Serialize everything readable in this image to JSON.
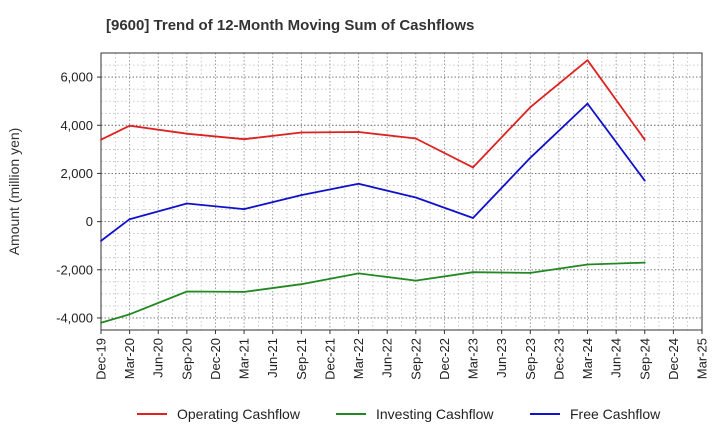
{
  "chart_data": {
    "type": "line",
    "title": "[9600]  Trend of 12-Month Moving Sum of Cashflows",
    "ylabel": "Amount (million yen)",
    "xlabel": "",
    "ylim": [
      -4500,
      7000
    ],
    "yticks": [
      -4000,
      -2000,
      0,
      2000,
      4000,
      6000
    ],
    "ytick_labels": [
      "-4,000",
      "-2,000",
      "0",
      "2,000",
      "4,000",
      "6,000"
    ],
    "categories": [
      "Dec-19",
      "Mar-20",
      "Jun-20",
      "Sep-20",
      "Dec-20",
      "Mar-21",
      "Jun-21",
      "Sep-21",
      "Dec-21",
      "Mar-22",
      "Jun-22",
      "Sep-22",
      "Dec-22",
      "Mar-23",
      "Jun-23",
      "Sep-23",
      "Dec-23",
      "Mar-24",
      "Jun-24",
      "Sep-24",
      "Dec-24",
      "Mar-25"
    ],
    "grid": true,
    "legend_position": "bottom",
    "series": [
      {
        "name": "Operating Cashflow",
        "color": "#dd2222",
        "values": [
          3400,
          3980,
          null,
          3650,
          null,
          3420,
          null,
          3700,
          null,
          3720,
          null,
          3450,
          null,
          2250,
          null,
          4750,
          null,
          6700,
          null,
          3400,
          null,
          null
        ]
      },
      {
        "name": "Investing Cashflow",
        "color": "#228822",
        "values": [
          -4200,
          -3850,
          null,
          -2900,
          null,
          -2920,
          null,
          -2600,
          null,
          -2150,
          null,
          -2450,
          null,
          -2100,
          null,
          -2130,
          null,
          -1780,
          null,
          -1700,
          null,
          null
        ]
      },
      {
        "name": "Free Cashflow",
        "color": "#1111cc",
        "values": [
          -800,
          100,
          null,
          750,
          null,
          520,
          null,
          1100,
          null,
          1570,
          null,
          1000,
          null,
          150,
          null,
          2650,
          null,
          4900,
          null,
          1700,
          null,
          null
        ]
      }
    ]
  }
}
